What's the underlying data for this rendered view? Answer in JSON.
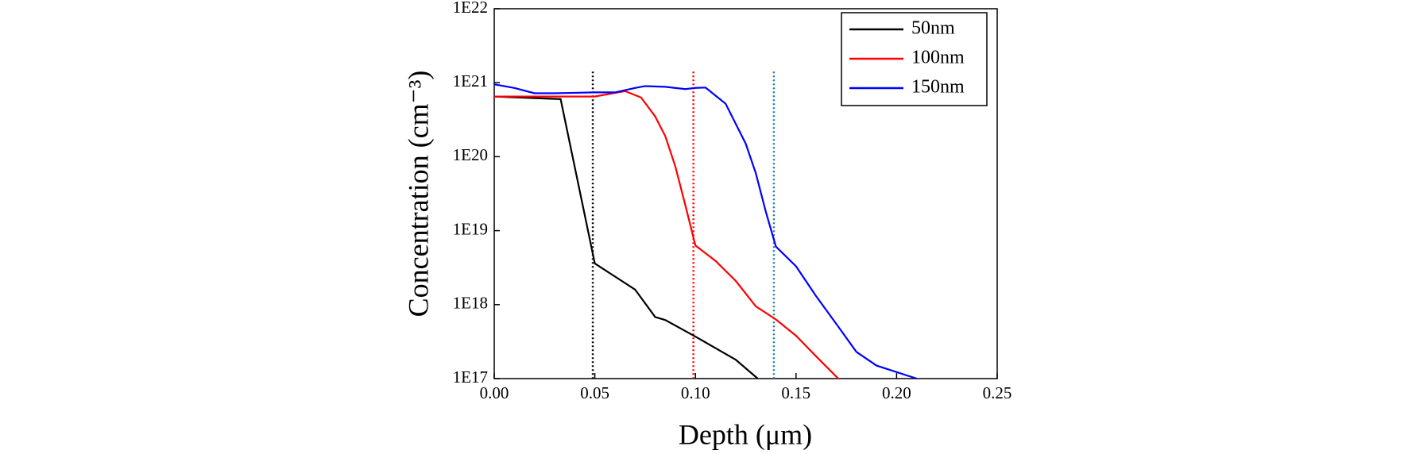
{
  "chart_data": {
    "type": "line",
    "x_label": "Depth (μm)",
    "y_label": "Concentration (cm⁻³)",
    "log_y": true,
    "legend": "upper right",
    "xlim": [
      0,
      0.25
    ],
    "xticks": [
      {
        "value": 0,
        "label": "0.00"
      },
      {
        "value": 0.05,
        "label": "0.05"
      },
      {
        "value": 0.1,
        "label": "0.10"
      },
      {
        "value": 0.15,
        "label": "0.15"
      },
      {
        "value": 0.2,
        "label": "0.20"
      },
      {
        "value": 0.25,
        "label": "0.25"
      }
    ],
    "ylim": [
      1e+17,
      1e+22
    ],
    "yticks": [
      {
        "value": 1e+17,
        "label": "1E17"
      },
      {
        "value": 1e+18,
        "label": "1E18"
      },
      {
        "value": 1e+19,
        "label": "1E19"
      },
      {
        "value": 1e+20,
        "label": "1E20"
      },
      {
        "value": 1e+21,
        "label": "1E21"
      },
      {
        "value": 1e+22,
        "label": "1E22"
      }
    ],
    "series": [
      {
        "name": "50nm",
        "color": "#000000",
        "x": [
          0,
          0.033,
          0.05,
          0.06,
          0.07,
          0.08,
          0.085,
          0.1,
          0.12,
          0.131
        ],
        "values": [
          6.5e+20,
          6e+20,
          3.6e+18,
          2.4e+18,
          1.6e+18,
          6.8e+17,
          6.2e+17,
          3.7e+17,
          1.8e+17,
          1e+17
        ]
      },
      {
        "name": "100nm",
        "color": "#ff0000",
        "x": [
          0,
          0.03,
          0.05,
          0.065,
          0.073,
          0.08,
          0.085,
          0.09,
          0.095,
          0.1,
          0.11,
          0.12,
          0.13,
          0.14,
          0.15,
          0.16,
          0.171
        ],
        "values": [
          6.5e+20,
          6.5e+20,
          6.5e+20,
          7.7e+20,
          6.3e+20,
          3.5e+20,
          1.9e+20,
          7.4e+19,
          2.2e+19,
          6.3e+18,
          3.9e+18,
          2.1e+18,
          9.5e+17,
          6.3e+17,
          3.8e+17,
          2e+17,
          1e+17
        ]
      },
      {
        "name": "150nm",
        "color": "#0000ff",
        "x": [
          0,
          0.01,
          0.02,
          0.03,
          0.04,
          0.05,
          0.06,
          0.07,
          0.075,
          0.085,
          0.095,
          0.1,
          0.105,
          0.115,
          0.125,
          0.13,
          0.135,
          0.14,
          0.15,
          0.16,
          0.17,
          0.18,
          0.19,
          0.21
        ],
        "values": [
          9.5e+20,
          8.5e+20,
          7.2e+20,
          7.2e+20,
          7.3e+20,
          7.4e+20,
          7.4e+20,
          8.5e+20,
          9e+20,
          8.8e+20,
          8.2e+20,
          8.5e+20,
          8.6e+20,
          5.2e+20,
          1.5e+20,
          6e+19,
          1.8e+19,
          6.1e+18,
          3.3e+18,
          1.3e+18,
          5.5e+17,
          2.3e+17,
          1.5e+17,
          1e+17
        ]
      }
    ],
    "vlines": [
      {
        "x": 0.049,
        "color": "#000000"
      },
      {
        "x": 0.099,
        "color": "#ff0000"
      },
      {
        "x": 0.139,
        "color": "#1f77b4"
      }
    ]
  }
}
